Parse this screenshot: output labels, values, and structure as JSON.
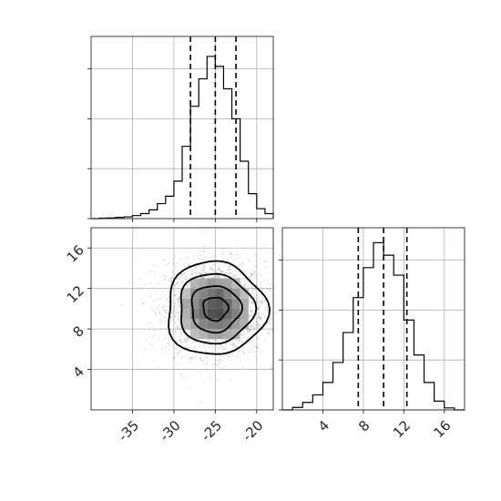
{
  "chart_data": [
    {
      "type": "histogram",
      "panel": "marginal-x",
      "grid": true,
      "xlim": [
        -40,
        -18
      ],
      "bin_edges": [
        -40,
        -39,
        -38,
        -37,
        -36,
        -35,
        -34,
        -33,
        -32,
        -31,
        -30,
        -29,
        -28,
        -27,
        -26,
        -25,
        -24,
        -23,
        -22,
        -21,
        -20,
        -19,
        -18
      ],
      "counts": [
        0,
        2,
        3,
        5,
        7,
        12,
        20,
        35,
        60,
        90,
        150,
        290,
        450,
        560,
        650,
        610,
        520,
        400,
        230,
        100,
        40,
        20
      ],
      "ylim": [
        0,
        730
      ],
      "y_gridlines": [
        0,
        200,
        400,
        600
      ],
      "quantile_lines": [
        -28,
        -25,
        -22.5
      ],
      "x_ticks": [
        -35,
        -30,
        -25,
        -20
      ],
      "x_tick_labels": [
        "-35",
        "-30",
        "-25",
        "-20"
      ]
    },
    {
      "type": "histogram",
      "panel": "marginal-y",
      "grid": true,
      "xlim": [
        0,
        18
      ],
      "bin_edges": [
        0,
        1,
        2,
        3,
        4,
        5,
        6,
        7,
        8,
        9,
        10,
        11,
        12,
        13,
        14,
        15,
        16,
        17,
        18
      ],
      "counts": [
        0,
        10,
        30,
        60,
        110,
        190,
        310,
        450,
        570,
        670,
        620,
        540,
        360,
        220,
        110,
        35,
        8,
        0
      ],
      "ylim": [
        0,
        730
      ],
      "y_gridlines": [
        0,
        200,
        400,
        600
      ],
      "quantile_lines": [
        7.5,
        10,
        12.3
      ],
      "x_ticks": [
        4,
        8,
        12,
        16
      ],
      "x_tick_labels": [
        "4",
        "8",
        "12",
        "16"
      ]
    },
    {
      "type": "heatmap",
      "panel": "joint-2d",
      "grid": true,
      "xlim": [
        -40,
        -18
      ],
      "ylim": [
        0,
        18
      ],
      "x_ticks": [
        -35,
        -30,
        -25,
        -20
      ],
      "x_tick_labels": [
        "-35",
        "-30",
        "-25",
        "-20"
      ],
      "y_ticks": [
        4,
        8,
        12,
        16
      ],
      "y_tick_labels": [
        "4",
        "8",
        "12",
        "16"
      ],
      "mean": [
        -25,
        10
      ],
      "std": [
        3,
        2.3
      ],
      "contour_levels_sigma": [
        0.5,
        1.0,
        1.5,
        2.0
      ],
      "colors": {
        "points": "#808080",
        "contour": "#000000"
      }
    }
  ]
}
